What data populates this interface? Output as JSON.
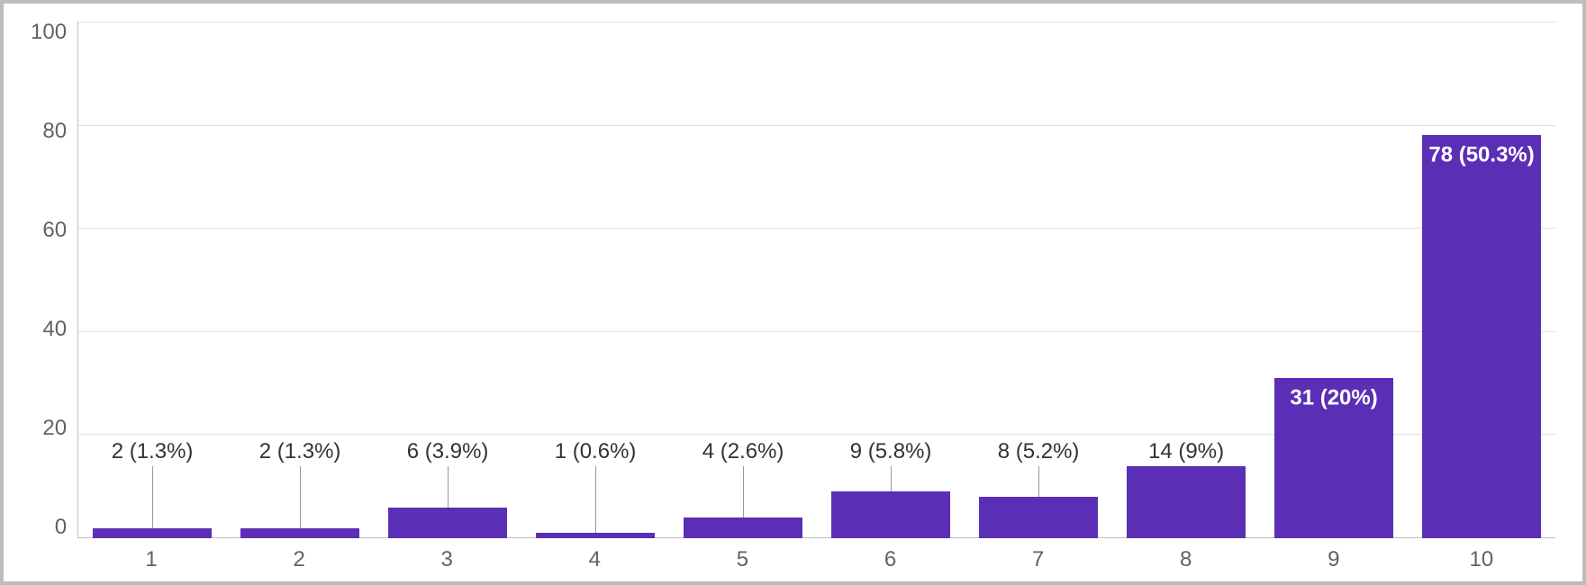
{
  "chart": {
    "type": "bar",
    "background_color": "#ffffff",
    "grid_color": "#e0e0e0",
    "axis_line_color": "#c0c0c0",
    "bar_color": "#5b2fb5",
    "label_color": "#333333",
    "inside_label_color": "#ffffff",
    "tick_color": "#5f6368",
    "font_family": "Arial",
    "label_fontsize": 24,
    "tick_fontsize": 24,
    "bar_width_pct": 80,
    "ylim": [
      0,
      100
    ],
    "ytick_step": 20,
    "y_ticks": [
      "100",
      "80",
      "60",
      "40",
      "20",
      "0"
    ],
    "categories": [
      "1",
      "2",
      "3",
      "4",
      "5",
      "6",
      "7",
      "8",
      "9",
      "10"
    ],
    "values": [
      2,
      2,
      6,
      1,
      4,
      9,
      8,
      14,
      31,
      78
    ],
    "labels": [
      "2 (1.3%)",
      "2 (1.3%)",
      "6 (3.9%)",
      "1 (0.6%)",
      "4 (2.6%)",
      "9 (5.8%)",
      "8 (5.2%)",
      "14 (9%)",
      "31 (20%)",
      "78 (50.3%)"
    ],
    "same_label_y_for_low_bars": true,
    "low_bar_label_y_value": 14,
    "stem_color": "#999999",
    "inside_label_threshold": 20
  }
}
